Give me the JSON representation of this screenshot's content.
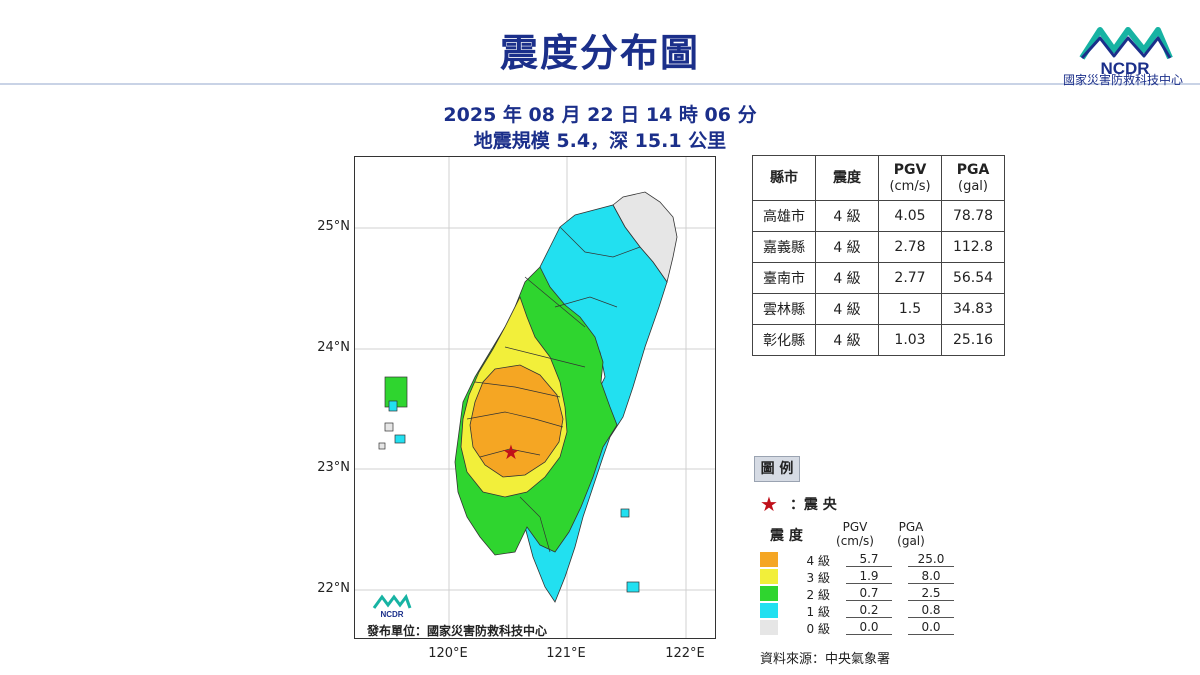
{
  "header": {
    "title": "震度分布圖",
    "org_logo_text": "NCDR",
    "org_name": "國家災害防救科技中心"
  },
  "event": {
    "datetime": "2025 年 08 月 22 日 14 時 06 分",
    "magnitude_depth": "地震規模 5.4，深 15.1 公里"
  },
  "map": {
    "lat_labels": [
      "25°N",
      "24°N",
      "23°N",
      "22°N"
    ],
    "lon_labels": [
      "120°E",
      "121°E",
      "122°E"
    ],
    "publisher": "發布單位：國家災害防救科技中心",
    "logo_text": "NCDR",
    "epicenter": {
      "lon": 120.55,
      "lat": 23.18
    }
  },
  "table": {
    "headers": {
      "county": "縣市",
      "intensity": "震度",
      "pgv": "PGV",
      "pgv_unit": "(cm/s)",
      "pga": "PGA",
      "pga_unit": "(gal)"
    },
    "rows": [
      {
        "county": "高雄市",
        "intensity": "4 級",
        "pgv": "4.05",
        "pga": "78.78"
      },
      {
        "county": "嘉義縣",
        "intensity": "4 級",
        "pgv": "2.78",
        "pga": "112.8"
      },
      {
        "county": "臺南市",
        "intensity": "4 級",
        "pgv": "2.77",
        "pga": "56.54"
      },
      {
        "county": "雲林縣",
        "intensity": "4 級",
        "pgv": "1.5",
        "pga": "34.83"
      },
      {
        "county": "彰化縣",
        "intensity": "4 級",
        "pgv": "1.03",
        "pga": "25.16"
      }
    ]
  },
  "legend": {
    "title": "圖 例",
    "epicenter_label": "：震 央",
    "col_intensity": "震 度",
    "col_pgv": "PGV",
    "col_pgv_unit": "(cm/s)",
    "col_pga": "PGA",
    "col_pga_unit": "(gal)",
    "levels": [
      {
        "label": "4 級",
        "color": "#f5a623",
        "pgv": "5.7",
        "pga": "25.0"
      },
      {
        "label": "3 級",
        "color": "#f2ef3a",
        "pgv": "1.9",
        "pga": "8.0"
      },
      {
        "label": "2 級",
        "color": "#2fd52f",
        "pgv": "0.7",
        "pga": "2.5"
      },
      {
        "label": "1 級",
        "color": "#22e0f0",
        "pgv": "0.2",
        "pga": "0.8"
      },
      {
        "label": "0 級",
        "color": "#e6e6e6",
        "pgv": "0.0",
        "pga": "0.0"
      }
    ]
  },
  "source": "資料來源：中央氣象署",
  "colors": {
    "title": "#1b2f8a",
    "epicenter": "#c0101a"
  }
}
